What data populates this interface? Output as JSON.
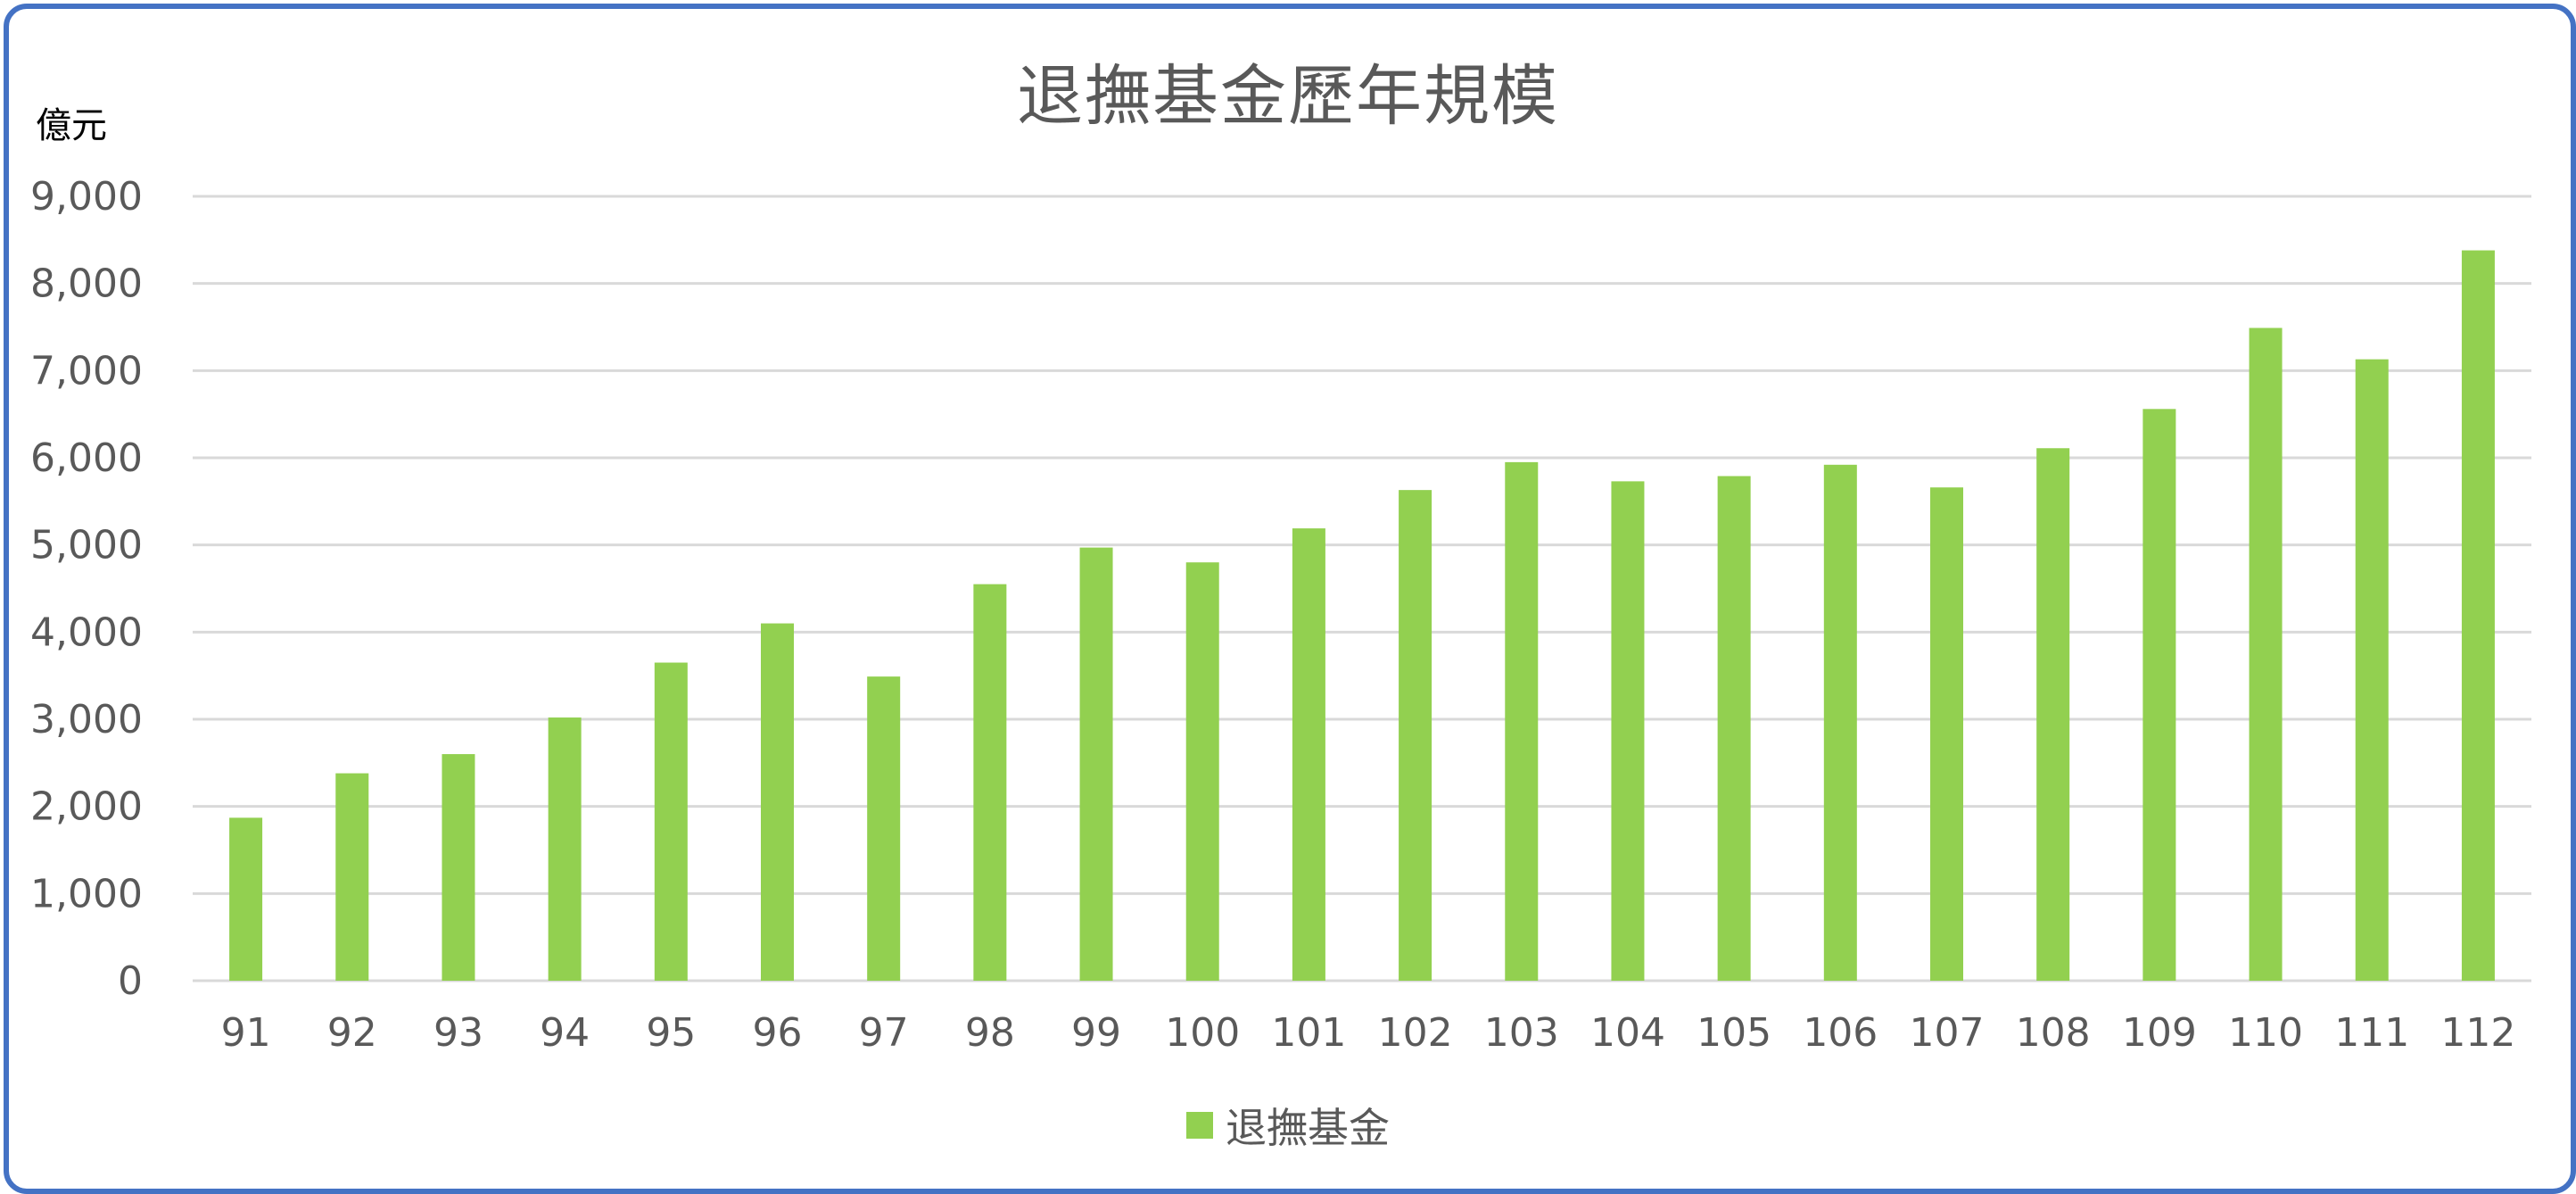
{
  "chart_data": {
    "type": "bar",
    "title": "退撫基金歷年規模",
    "ylabel": "億元",
    "xlabel": "",
    "categories": [
      "91",
      "92",
      "93",
      "94",
      "95",
      "96",
      "97",
      "98",
      "99",
      "100",
      "101",
      "102",
      "103",
      "104",
      "105",
      "106",
      "107",
      "108",
      "109",
      "110",
      "111",
      "112"
    ],
    "series": [
      {
        "name": "退撫基金",
        "color": "#92D050",
        "values": [
          1870,
          2380,
          2600,
          3020,
          3650,
          4100,
          3490,
          4550,
          4970,
          4800,
          5190,
          5630,
          5950,
          5730,
          5790,
          5920,
          5660,
          6110,
          6560,
          7490,
          7130,
          8380
        ]
      }
    ],
    "ylim": [
      0,
      9000
    ],
    "yticks": [
      "0",
      "1,000",
      "2,000",
      "3,000",
      "4,000",
      "5,000",
      "6,000",
      "7,000",
      "8,000",
      "9,000"
    ],
    "grid": true,
    "legend_position": "bottom"
  },
  "colors": {
    "frame": "#4472C4",
    "bar": "#92D050",
    "grid": "#D9D9D9",
    "text": "#595959"
  }
}
